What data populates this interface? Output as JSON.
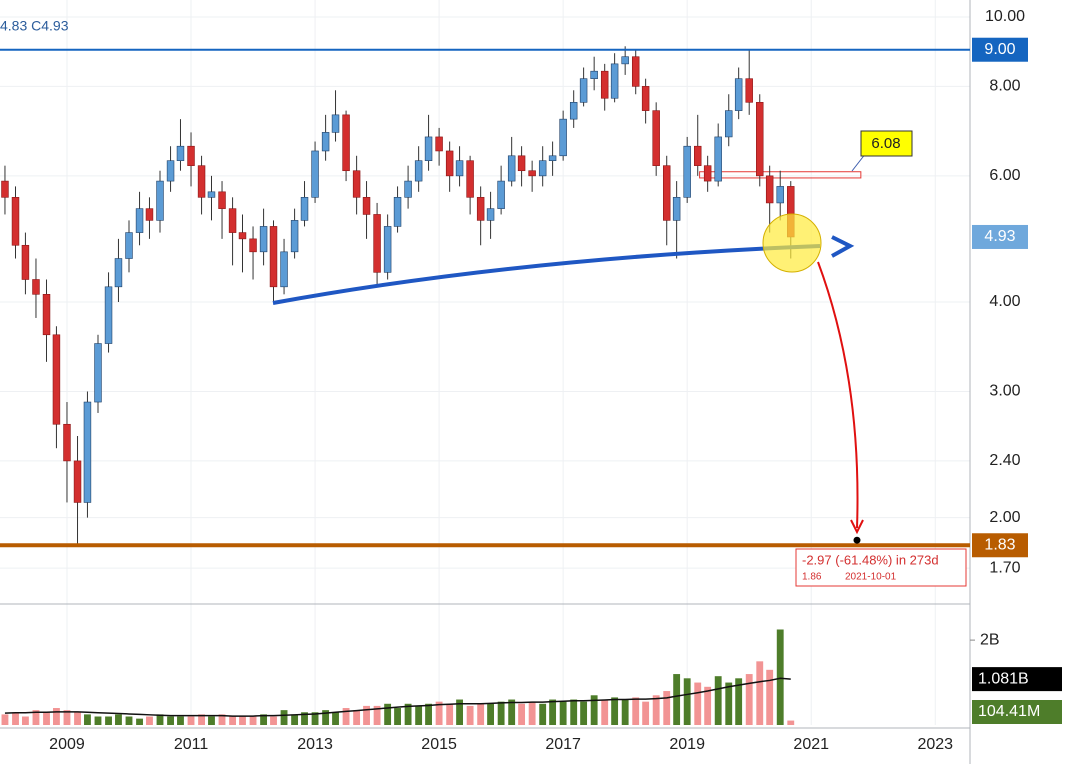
{
  "chart_data": {
    "type": "candlestick",
    "legend_text": "4.83 C4.93",
    "xlim": [
      2007.92,
      2023.56
    ],
    "xticks": [
      2009,
      2011,
      2013,
      2015,
      2017,
      2019,
      2021,
      2023
    ],
    "ylim": [
      1.52,
      10.56
    ],
    "log_y": true,
    "grid": true,
    "yticks": [
      {
        "value": 10,
        "label": "10.00"
      },
      {
        "value": 8,
        "label": "8.00"
      },
      {
        "value": 6,
        "label": "6.00"
      },
      {
        "value": 4,
        "label": "4.00"
      },
      {
        "value": 3,
        "label": "3.00"
      },
      {
        "value": 2.4,
        "label": "2.40"
      },
      {
        "value": 2,
        "label": "2.00"
      },
      {
        "value": 1.7,
        "label": "1.70"
      }
    ],
    "up_color": "#5b9bd5",
    "down_color": "#d32f2f",
    "x": [
      2008,
      2008.17,
      2008.33,
      2008.5,
      2008.67,
      2008.83,
      2009,
      2009.17,
      2009.33,
      2009.5,
      2009.67,
      2009.83,
      2010,
      2010.17,
      2010.33,
      2010.5,
      2010.67,
      2010.83,
      2011,
      2011.17,
      2011.33,
      2011.5,
      2011.67,
      2011.83,
      2012,
      2012.17,
      2012.33,
      2012.5,
      2012.67,
      2012.83,
      2013,
      2013.17,
      2013.33,
      2013.5,
      2013.67,
      2013.83,
      2014,
      2014.17,
      2014.33,
      2014.5,
      2014.67,
      2014.83,
      2015,
      2015.17,
      2015.33,
      2015.5,
      2015.67,
      2015.83,
      2016,
      2016.17,
      2016.33,
      2016.5,
      2016.67,
      2016.83,
      2017,
      2017.17,
      2017.33,
      2017.5,
      2017.67,
      2017.83,
      2018,
      2018.17,
      2018.33,
      2018.5,
      2018.67,
      2018.83,
      2019,
      2019.17,
      2019.33,
      2019.5,
      2019.67,
      2019.83,
      2020,
      2020.17,
      2020.33,
      2020.5,
      2020.67
    ],
    "open": [
      5.9,
      5.6,
      4.8,
      4.3,
      4.1,
      3.6,
      2.7,
      2.4,
      2.1,
      2.9,
      3.5,
      4.2,
      4.6,
      5.0,
      5.4,
      5.2,
      5.9,
      6.3,
      6.6,
      6.2,
      5.6,
      5.7,
      5.4,
      5.0,
      4.9,
      4.7,
      5.1,
      4.2,
      4.7,
      5.2,
      5.6,
      6.5,
      6.9,
      7.3,
      6.1,
      5.6,
      5.3,
      4.4,
      5.1,
      5.6,
      5.9,
      6.3,
      6.8,
      6.5,
      6.0,
      6.3,
      5.6,
      5.2,
      5.4,
      5.9,
      6.4,
      6.1,
      6.0,
      6.3,
      6.4,
      7.2,
      7.6,
      8.2,
      8.4,
      7.7,
      8.6,
      8.8,
      8.0,
      7.4,
      6.2,
      5.2,
      5.6,
      6.6,
      6.2,
      5.9,
      6.8,
      7.4,
      8.2,
      7.6,
      6.0,
      5.5,
      5.8
    ],
    "high": [
      6.2,
      5.8,
      5.0,
      4.6,
      4.3,
      3.7,
      2.9,
      2.6,
      3.0,
      3.6,
      4.4,
      4.9,
      5.2,
      5.7,
      5.6,
      6.1,
      6.6,
      7.2,
      6.9,
      6.4,
      6.0,
      5.9,
      5.6,
      5.3,
      5.1,
      5.4,
      5.2,
      4.9,
      5.4,
      5.9,
      6.7,
      7.3,
      7.9,
      7.4,
      6.4,
      5.9,
      5.5,
      5.3,
      5.8,
      6.2,
      6.6,
      7.3,
      7.0,
      6.7,
      6.6,
      6.4,
      5.8,
      5.7,
      6.2,
      6.8,
      6.6,
      6.3,
      6.6,
      6.7,
      7.4,
      7.9,
      8.5,
      8.8,
      8.6,
      8.9,
      9.1,
      9.0,
      8.2,
      7.6,
      6.4,
      5.9,
      6.8,
      7.3,
      6.4,
      7.1,
      7.8,
      8.5,
      9.0,
      7.8,
      6.2,
      6.1,
      5.9
    ],
    "low": [
      5.3,
      4.6,
      4.1,
      3.8,
      3.3,
      2.5,
      2.1,
      1.83,
      2.0,
      2.8,
      3.4,
      4.0,
      4.4,
      4.8,
      4.9,
      5.0,
      5.7,
      6.1,
      5.8,
      5.3,
      5.2,
      4.9,
      4.5,
      4.4,
      4.3,
      4.5,
      4.0,
      4.1,
      4.6,
      5.1,
      5.5,
      6.3,
      6.7,
      5.9,
      5.3,
      4.9,
      4.2,
      4.3,
      5.0,
      5.4,
      5.7,
      6.1,
      6.2,
      5.7,
      5.8,
      5.3,
      4.8,
      4.9,
      5.3,
      5.8,
      5.8,
      5.7,
      5.8,
      6.0,
      6.3,
      7.0,
      7.5,
      7.9,
      7.4,
      7.6,
      8.3,
      7.8,
      7.1,
      6.0,
      4.8,
      4.6,
      5.5,
      6.0,
      5.7,
      5.8,
      6.6,
      7.2,
      7.3,
      5.8,
      5.0,
      5.2,
      4.6
    ],
    "close": [
      5.6,
      4.8,
      4.3,
      4.1,
      3.6,
      2.7,
      2.4,
      2.1,
      2.9,
      3.5,
      4.2,
      4.6,
      5.0,
      5.4,
      5.2,
      5.9,
      6.3,
      6.6,
      6.2,
      5.6,
      5.7,
      5.4,
      5.0,
      4.9,
      4.7,
      5.1,
      4.2,
      4.7,
      5.2,
      5.6,
      6.5,
      6.9,
      7.3,
      6.1,
      5.6,
      5.3,
      4.4,
      5.1,
      5.6,
      5.9,
      6.3,
      6.8,
      6.5,
      6.0,
      6.3,
      5.6,
      5.2,
      5.4,
      5.9,
      6.4,
      6.1,
      6.0,
      6.3,
      6.4,
      7.2,
      7.6,
      8.2,
      8.4,
      7.7,
      8.6,
      8.8,
      8.0,
      7.4,
      6.2,
      5.2,
      5.6,
      6.6,
      6.2,
      5.9,
      6.8,
      7.4,
      8.2,
      7.6,
      6.0,
      5.5,
      5.8,
      4.93
    ],
    "price_labels": [
      {
        "value": 9,
        "label": "9.00",
        "color": "#1565c0",
        "line": true
      },
      {
        "value": 4.93,
        "color": "#6fa8dc",
        "line": false
      },
      {
        "value": 1.83,
        "color": "#b85c00",
        "line": true
      }
    ],
    "zone": {
      "x": [
        2019.2,
        2021.8
      ],
      "ylim": [
        5.96,
        6.08
      ],
      "color": "#e53935"
    },
    "measure": {
      "text": "-2.97 (-61.48%) in 273d",
      "price": 1.86,
      "date": "2021-10-01"
    },
    "volume": {
      "values": [
        0.25,
        0.3,
        0.2,
        0.35,
        0.3,
        0.4,
        0.35,
        0.3,
        0.25,
        0.2,
        0.2,
        0.25,
        0.2,
        0.15,
        0.2,
        0.25,
        0.2,
        0.2,
        0.2,
        0.25,
        0.2,
        0.25,
        0.2,
        0.2,
        0.2,
        0.25,
        0.2,
        0.35,
        0.25,
        0.3,
        0.3,
        0.35,
        0.3,
        0.4,
        0.35,
        0.45,
        0.45,
        0.5,
        0.4,
        0.5,
        0.45,
        0.5,
        0.55,
        0.5,
        0.6,
        0.45,
        0.5,
        0.5,
        0.55,
        0.6,
        0.5,
        0.55,
        0.5,
        0.6,
        0.55,
        0.6,
        0.55,
        0.7,
        0.6,
        0.65,
        0.6,
        0.65,
        0.55,
        0.7,
        0.8,
        1.2,
        1.1,
        1.0,
        0.9,
        1.15,
        1.0,
        1.1,
        1.2,
        1.5,
        1.3,
        2.25,
        0.10441
      ],
      "up_color": "#4e7d2a",
      "down_color": "#f29494",
      "ylim": [
        0,
        2.78
      ],
      "yticks": [
        {
          "value": 2,
          "label": "2B"
        }
      ],
      "last_label": {
        "value": 0.10441,
        "label": "104.41M",
        "color": "#4e7d2a"
      }
    },
    "volume_ma": {
      "values": [
        0.28,
        0.29,
        0.29,
        0.3,
        0.3,
        0.31,
        0.31,
        0.31,
        0.3,
        0.29,
        0.28,
        0.27,
        0.26,
        0.25,
        0.24,
        0.23,
        0.22,
        0.22,
        0.22,
        0.22,
        0.22,
        0.22,
        0.21,
        0.21,
        0.21,
        0.22,
        0.22,
        0.23,
        0.24,
        0.25,
        0.26,
        0.28,
        0.3,
        0.32,
        0.34,
        0.36,
        0.38,
        0.4,
        0.42,
        0.44,
        0.45,
        0.46,
        0.48,
        0.49,
        0.5,
        0.5,
        0.5,
        0.51,
        0.52,
        0.53,
        0.53,
        0.54,
        0.54,
        0.55,
        0.56,
        0.57,
        0.57,
        0.58,
        0.59,
        0.6,
        0.6,
        0.61,
        0.61,
        0.62,
        0.64,
        0.68,
        0.72,
        0.76,
        0.8,
        0.85,
        0.9,
        0.94,
        0.98,
        1.02,
        1.05,
        1.1,
        1.081
      ],
      "color": "#111111",
      "last_label": {
        "value": 1.081,
        "label": "1.081B",
        "color": "#000000"
      }
    }
  }
}
